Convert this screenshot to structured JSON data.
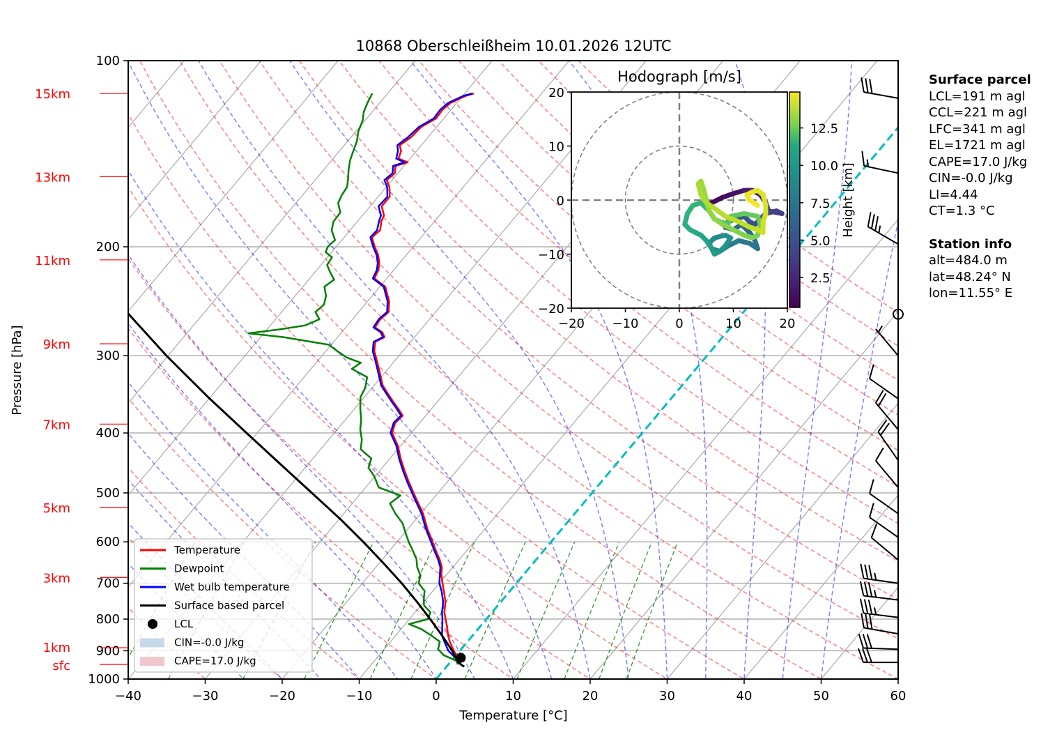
{
  "chart_data": {
    "type": "line",
    "title": "10868 Oberschleißheim 10.01.2026 12UTC",
    "xlabel": "Temperature [°C]",
    "ylabel": "Pressure [hPa]",
    "xlim": [
      -40,
      60
    ],
    "ylim": [
      1000,
      100
    ],
    "yscale": "log",
    "grid": true,
    "x_ticks": [
      "−40",
      "−30",
      "−20",
      "−10",
      "0",
      "10",
      "20",
      "30",
      "40",
      "50",
      "60"
    ],
    "x_tick_values": [
      -40,
      -30,
      -20,
      -10,
      0,
      10,
      20,
      30,
      40,
      50,
      60
    ],
    "y_ticks": [
      "100",
      "200",
      "300",
      "400",
      "500",
      "600",
      "700",
      "800",
      "900",
      "1000"
    ],
    "y_tick_values": [
      100,
      200,
      300,
      400,
      500,
      600,
      700,
      800,
      900,
      1000
    ],
    "height_labels": [
      {
        "label": "15km",
        "p": 113
      },
      {
        "label": "13km",
        "p": 154
      },
      {
        "label": "11km",
        "p": 210
      },
      {
        "label": "9km",
        "p": 287
      },
      {
        "label": "7km",
        "p": 387
      },
      {
        "label": "5km",
        "p": 528
      },
      {
        "label": "3km",
        "p": 685
      },
      {
        "label": "1km",
        "p": 890
      },
      {
        "label": "sfc",
        "p": 947
      }
    ],
    "series": [
      {
        "name": "Temperature",
        "color": "#ff0000",
        "p": [
          947,
          930,
          900,
          870,
          850,
          820,
          800,
          780,
          750,
          720,
          700,
          680,
          660,
          640,
          620,
          600,
          570,
          540,
          510,
          480,
          460,
          440,
          420,
          400,
          385,
          375,
          365,
          355,
          345,
          335,
          320,
          305,
          295,
          285,
          280,
          275,
          270,
          262,
          255,
          245,
          240,
          232,
          225,
          218,
          212,
          206,
          200,
          193,
          188,
          182,
          178,
          172,
          166,
          160,
          156,
          152,
          148,
          146,
          144,
          140,
          137,
          133,
          128,
          124,
          120,
          117,
          114,
          113
        ],
        "T": [
          1.6,
          0.8,
          -0.8,
          -2.3,
          -3.2,
          -4.4,
          -5.3,
          -6.2,
          -7.2,
          -8.6,
          -9.6,
          -10.6,
          -11.4,
          -12.6,
          -14.0,
          -15.4,
          -17.6,
          -19.7,
          -22.3,
          -25.0,
          -26.8,
          -28.6,
          -30.3,
          -32.5,
          -33.2,
          -33.0,
          -34.4,
          -35.9,
          -37.4,
          -38.9,
          -40.6,
          -42.4,
          -43.7,
          -44.6,
          -43.9,
          -44.7,
          -46.2,
          -46.4,
          -46.1,
          -47.2,
          -48.0,
          -49.3,
          -51.6,
          -52.0,
          -52.7,
          -53.7,
          -55.0,
          -56.4,
          -56.1,
          -56.9,
          -57.2,
          -58.5,
          -58.5,
          -59.6,
          -60.7,
          -60.4,
          -61.1,
          -59.9,
          -61.5,
          -62.0,
          -62.8,
          -62.2,
          -62.0,
          -61.0,
          -61.1,
          -60.8,
          -59.6,
          -58.8
        ]
      },
      {
        "name": "Dewpoint",
        "color": "#008000",
        "p": [
          947,
          935,
          915,
          895,
          870,
          850,
          830,
          815,
          800,
          780,
          760,
          740,
          720,
          700,
          680,
          660,
          640,
          620,
          600,
          580,
          560,
          540,
          520,
          505,
          490,
          470,
          455,
          440,
          425,
          410,
          395,
          380,
          365,
          350,
          338,
          325,
          315,
          308,
          302,
          295,
          288,
          280,
          276,
          272,
          268,
          262,
          255,
          248,
          240,
          232,
          226,
          220,
          214,
          208,
          204,
          200,
          195,
          188,
          182,
          176,
          170,
          165,
          160,
          155,
          150,
          145,
          140,
          135,
          130,
          125,
          121,
          117,
          113
        ],
        "T": [
          1.2,
          0.7,
          -1.6,
          -3.0,
          -3.6,
          -5.4,
          -7.4,
          -9.5,
          -7.6,
          -8.0,
          -9.6,
          -10.4,
          -11.1,
          -12.7,
          -13.3,
          -14.6,
          -15.6,
          -17.0,
          -18.5,
          -19.9,
          -21.3,
          -23.3,
          -25.1,
          -24.6,
          -28.3,
          -30.1,
          -31.8,
          -32.4,
          -34.8,
          -35.7,
          -37.0,
          -38.0,
          -39.3,
          -40.5,
          -40.9,
          -41.8,
          -44.7,
          -44.2,
          -46.6,
          -48.5,
          -50.3,
          -57.0,
          -62.0,
          -58.4,
          -55.5,
          -54.3,
          -55.6,
          -55.3,
          -56.0,
          -57.2,
          -56.7,
          -58.0,
          -59.2,
          -59.4,
          -60.8,
          -61.1,
          -60.9,
          -62.4,
          -63.1,
          -63.2,
          -64.5,
          -64.9,
          -65.1,
          -65.9,
          -66.8,
          -67.6,
          -68.2,
          -68.8,
          -69.7,
          -70.3,
          -71.1,
          -71.6,
          -72.0
        ]
      },
      {
        "name": "Wet bulb temperature",
        "color": "#0000ff",
        "p": [
          947,
          930,
          900,
          870,
          850,
          820,
          800,
          780,
          750,
          720,
          700,
          680,
          660,
          640,
          620,
          600,
          570,
          540,
          510,
          480,
          460,
          440,
          420,
          400,
          385,
          375,
          365,
          355,
          345,
          335,
          320,
          305,
          295,
          285,
          280,
          275,
          270,
          262,
          255,
          245,
          240,
          232,
          225,
          218,
          212,
          206,
          200,
          193,
          188,
          182,
          178,
          172,
          166,
          160,
          156,
          152,
          148,
          146,
          144,
          140,
          137,
          133,
          128,
          124,
          120,
          117,
          114,
          113
        ],
        "T": [
          1.4,
          0.6,
          -1.5,
          -3.0,
          -4.0,
          -5.0,
          -5.7,
          -6.5,
          -7.5,
          -8.9,
          -10.0,
          -10.8,
          -11.6,
          -12.8,
          -14.2,
          -15.6,
          -17.8,
          -19.9,
          -22.5,
          -25.2,
          -27.0,
          -28.8,
          -30.5,
          -32.7,
          -33.4,
          -33.2,
          -34.6,
          -36.1,
          -37.6,
          -39.1,
          -40.8,
          -42.6,
          -43.9,
          -44.8,
          -44.1,
          -44.9,
          -46.4,
          -46.6,
          -46.3,
          -47.4,
          -48.2,
          -49.5,
          -51.8,
          -52.2,
          -52.9,
          -53.9,
          -55.2,
          -56.6,
          -56.5,
          -57.2,
          -57.6,
          -58.9,
          -58.8,
          -59.9,
          -61.0,
          -60.7,
          -61.4,
          -60.3,
          -61.8,
          -62.4,
          -63.1,
          -62.6,
          -62.3,
          -61.3,
          -61.4,
          -61.1,
          -59.9,
          -59.0
        ]
      },
      {
        "name": "Surface based parcel",
        "color": "#000000",
        "p": [
          955,
          947,
          930,
          900,
          850,
          800,
          750,
          700,
          650,
          600,
          550,
          500,
          450,
          400,
          350,
          300,
          250,
          230
        ],
        "T": [
          2.3,
          1.6,
          0.5,
          -1.0,
          -4.0,
          -7.3,
          -10.9,
          -14.9,
          -19.4,
          -24.4,
          -30.0,
          -36.4,
          -43.5,
          -51.4,
          -60.3,
          -70.2,
          -81.3,
          -86.2
        ]
      }
    ],
    "lcl": {
      "label": "LCL",
      "p": 924,
      "T": 0.9
    },
    "legend": {
      "placement": "lower-left",
      "entries": [
        {
          "label": "Temperature",
          "color": "#ff0000",
          "kind": "line"
        },
        {
          "label": "Dewpoint",
          "color": "#008000",
          "kind": "line"
        },
        {
          "label": "Wet bulb temperature",
          "color": "#0000ff",
          "kind": "line"
        },
        {
          "label": "Surface based parcel",
          "color": "#000000",
          "kind": "line"
        },
        {
          "label": "LCL",
          "color": "#000000",
          "kind": "marker"
        },
        {
          "label": "CIN=-0.0 J/kg",
          "color": "#c6d9ea",
          "kind": "patch"
        },
        {
          "label": "CAPE=17.0 J/kg",
          "color": "#f0c8cc",
          "kind": "patch"
        }
      ]
    },
    "reference_lines": {
      "isotherms_step_C": 10,
      "zero_isotherm_color": "#00bfbf",
      "dry_adiabats_theta_C": [
        -30,
        -20,
        -10,
        0,
        10,
        20,
        30,
        40,
        50,
        60,
        70,
        80,
        90,
        100,
        110,
        120,
        130,
        140,
        150,
        160
      ],
      "moist_adiabats_C": [
        -25,
        -20,
        -15,
        -10,
        -5,
        0,
        5,
        10,
        15,
        20,
        25,
        30,
        35,
        40,
        45,
        50
      ],
      "mixing_ratios_gkg": [
        0.1,
        0.2,
        0.5,
        1,
        2,
        3,
        5,
        8,
        12,
        16,
        20
      ]
    },
    "wind_barbs": [
      {
        "p": 115,
        "dir": 280,
        "speed_kt": 30
      },
      {
        "p": 152,
        "dir": 282,
        "speed_kt": 15
      },
      {
        "p": 198,
        "dir": 300,
        "speed_kt": 35
      },
      {
        "p": 257,
        "dir": 0,
        "speed_kt": 0
      },
      {
        "p": 300,
        "dir": 320,
        "speed_kt": 7
      },
      {
        "p": 352,
        "dir": 305,
        "speed_kt": 12
      },
      {
        "p": 395,
        "dir": 320,
        "speed_kt": 20
      },
      {
        "p": 443,
        "dir": 325,
        "speed_kt": 22
      },
      {
        "p": 490,
        "dir": 320,
        "speed_kt": 12
      },
      {
        "p": 540,
        "dir": 305,
        "speed_kt": 10
      },
      {
        "p": 590,
        "dir": 305,
        "speed_kt": 10
      },
      {
        "p": 642,
        "dir": 310,
        "speed_kt": 10
      },
      {
        "p": 700,
        "dir": 278,
        "speed_kt": 35
      },
      {
        "p": 745,
        "dir": 277,
        "speed_kt": 35
      },
      {
        "p": 795,
        "dir": 277,
        "speed_kt": 35
      },
      {
        "p": 845,
        "dir": 280,
        "speed_kt": 30
      },
      {
        "p": 895,
        "dir": 272,
        "speed_kt": 30
      },
      {
        "p": 940,
        "dir": 270,
        "speed_kt": 30
      }
    ],
    "hodograph": {
      "title": "Hodograph [m/s]",
      "xlim": [
        -20,
        20
      ],
      "ylim": [
        -20,
        20
      ],
      "x_ticks": [
        "−20",
        "−10",
        "0",
        "10",
        "20"
      ],
      "x_tick_values": [
        -20,
        -10,
        0,
        10,
        20
      ],
      "y_ticks": [
        "20",
        "10",
        "0",
        "−10",
        "−20"
      ],
      "y_tick_values": [
        20,
        10,
        0,
        -10,
        -20
      ],
      "rings": [
        10,
        20
      ],
      "colorbar_label": "Height [km]",
      "colorbar_ticks": [
        "2.5",
        "5.0",
        "7.5",
        "10.0",
        "12.5"
      ],
      "colorbar_tick_values": [
        2.5,
        5.0,
        7.5,
        10.0,
        12.5
      ],
      "colorbar_range": [
        0.5,
        14.9
      ],
      "u": [
        4.5,
        6,
        8,
        10,
        12,
        13.5,
        15,
        16,
        16.5,
        19,
        18,
        16,
        15,
        14,
        13,
        12,
        10.5,
        9,
        8.5,
        10,
        11.5,
        13,
        14,
        14.5,
        13,
        11,
        9,
        7.5,
        6,
        5.5,
        6.5,
        8.5,
        9.5,
        8.5,
        7.5,
        6.5,
        6,
        5,
        4,
        3,
        2,
        1,
        1.5,
        2.5,
        4,
        5.5,
        6.5,
        7.5,
        9,
        9.5,
        12,
        14.5,
        15,
        14.5,
        13.5,
        12,
        10,
        8,
        6.5,
        5.5,
        5,
        4.5,
        4,
        3.5,
        4,
        5,
        6.5,
        8.5,
        11,
        13,
        14.5,
        15.5,
        15.5,
        16,
        16,
        15.5,
        14.5,
        13.5,
        12.5,
        13,
        14.5
      ],
      "v": [
        -1,
        -0.5,
        0.5,
        1.2,
        1.8,
        1.8,
        1,
        -0.5,
        -2,
        -2.5,
        -2,
        -2.5,
        -3.5,
        -4.5,
        -4,
        -3,
        -3.5,
        -4,
        -5,
        -5.5,
        -4.5,
        -6,
        -7.5,
        -9,
        -8,
        -7.5,
        -8.5,
        -9.5,
        -9,
        -8,
        -7,
        -6.5,
        -7,
        -8.5,
        -9.5,
        -10,
        -9,
        -7.5,
        -6.5,
        -6,
        -5.5,
        -4.5,
        -2.5,
        -1,
        -0.5,
        -2,
        -3.5,
        -4,
        -4.5,
        -3,
        -2.5,
        -3,
        -4.5,
        -6.5,
        -7,
        -6.5,
        -5.5,
        -4.5,
        -3.5,
        -2,
        0,
        2,
        3.5,
        3,
        1,
        -0.5,
        -1.5,
        -3,
        -4,
        -5,
        -5.5,
        -6,
        -4,
        -2.5,
        -1,
        1,
        1.8,
        1.5,
        1,
        0,
        -1
      ],
      "h": [
        0.5,
        0.8,
        1,
        1.3,
        1.6,
        1.9,
        2.2,
        2.5,
        2.8,
        3.1,
        3.4,
        3.6,
        3.8,
        4.0,
        4.2,
        4.4,
        4.6,
        4.8,
        5.0,
        5.2,
        5.4,
        5.6,
        5.8,
        6.0,
        6.2,
        6.4,
        6.6,
        6.8,
        7.0,
        7.2,
        7.4,
        7.6,
        7.8,
        8.0,
        8.2,
        8.4,
        8.6,
        8.8,
        9.0,
        9.2,
        9.4,
        9.6,
        9.8,
        10.0,
        10.2,
        10.4,
        10.6,
        10.8,
        11.0,
        11.2,
        11.4,
        11.6,
        11.8,
        12.0,
        12.1,
        12.2,
        12.3,
        12.4,
        12.5,
        12.6,
        12.7,
        12.8,
        12.9,
        13.0,
        13.1,
        13.2,
        13.3,
        13.4,
        13.5,
        13.6,
        13.7,
        13.8,
        13.9,
        14.0,
        14.1,
        14.2,
        14.3,
        14.5,
        14.6,
        14.7,
        14.9
      ]
    }
  },
  "side_panel": {
    "surface_parcel": {
      "heading": "Surface parcel",
      "lines": [
        "LCL=191 m agl",
        "CCL=221 m agl",
        "LFC=341 m agl",
        "EL=1721 m agl",
        "CAPE=17.0 J/kg",
        "CIN=-0.0 J/kg",
        "LI=4.44",
        "CT=1.3 °C"
      ]
    },
    "station_info": {
      "heading": "Station info",
      "lines": [
        "alt=484.0 m",
        "lat=48.24° N",
        "lon=11.55° E"
      ]
    }
  }
}
